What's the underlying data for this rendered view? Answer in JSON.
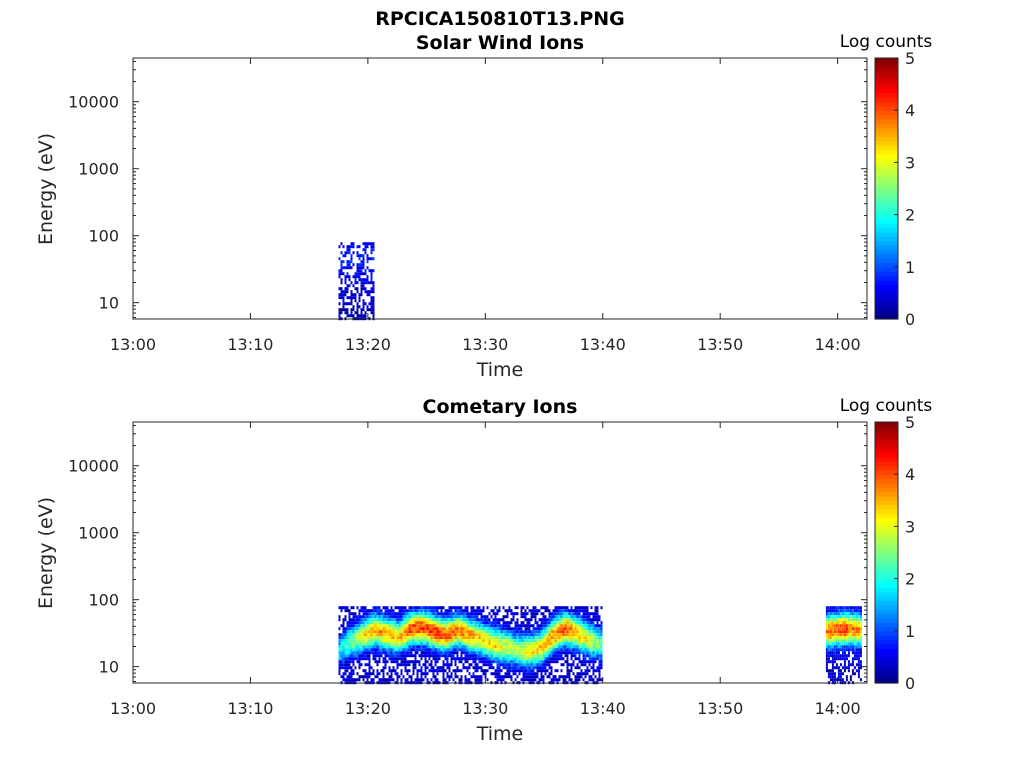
{
  "figure": {
    "title": "RPCICA150810T13.PNG"
  },
  "colormap": [
    "#00007f",
    "#0000ff",
    "#007fff",
    "#00ffff",
    "#7fff7f",
    "#ffff00",
    "#ff7f00",
    "#ff0000",
    "#7f0000"
  ],
  "chart_data": [
    {
      "type": "heatmap",
      "title": "Solar Wind Ions",
      "xlabel": "Time",
      "ylabel": "Energy (eV)",
      "x_unit": "minutes after 13:00",
      "xlim": [
        0,
        62.5
      ],
      "ylim": [
        5.7,
        45000
      ],
      "yscale": "log",
      "grid": false,
      "xticks": [
        {
          "value": 0,
          "label": "13:00"
        },
        {
          "value": 10,
          "label": "13:10"
        },
        {
          "value": 20,
          "label": "13:20"
        },
        {
          "value": 30,
          "label": "13:30"
        },
        {
          "value": 40,
          "label": "13:40"
        },
        {
          "value": 50,
          "label": "13:50"
        },
        {
          "value": 60,
          "label": "14:00"
        }
      ],
      "yticks": [
        {
          "value": 10,
          "label": "10"
        },
        {
          "value": 100,
          "label": "100"
        },
        {
          "value": 1000,
          "label": "1000"
        },
        {
          "value": 10000,
          "label": "10000"
        }
      ],
      "colorbar": {
        "label": "Log counts",
        "range": [
          0,
          5
        ],
        "ticks": [
          {
            "value": 0,
            "label": "0"
          },
          {
            "value": 1,
            "label": "1"
          },
          {
            "value": 2,
            "label": "2"
          },
          {
            "value": 3,
            "label": "3"
          },
          {
            "value": 4,
            "label": "4"
          },
          {
            "value": 5,
            "label": "5"
          }
        ]
      },
      "blocks": [
        {
          "t_start": 17.5,
          "t_end": 20.5,
          "e_min": 5.7,
          "e_max": 80,
          "counts": [
            0.3,
            0.4,
            0.5,
            0.4,
            0.3,
            0.2,
            0.1,
            0.1,
            0.0,
            0.0
          ],
          "coverage": 0.55
        }
      ]
    },
    {
      "type": "heatmap",
      "title": "Cometary Ions",
      "xlabel": "Time",
      "ylabel": "Energy (eV)",
      "x_unit": "minutes after 13:00",
      "xlim": [
        0,
        62.5
      ],
      "ylim": [
        5.7,
        45000
      ],
      "yscale": "log",
      "grid": false,
      "xticks": [
        {
          "value": 0,
          "label": "13:00"
        },
        {
          "value": 10,
          "label": "13:10"
        },
        {
          "value": 20,
          "label": "13:20"
        },
        {
          "value": 30,
          "label": "13:30"
        },
        {
          "value": 40,
          "label": "13:40"
        },
        {
          "value": 50,
          "label": "13:50"
        },
        {
          "value": 60,
          "label": "14:00"
        }
      ],
      "yticks": [
        {
          "value": 10,
          "label": "10"
        },
        {
          "value": 100,
          "label": "100"
        },
        {
          "value": 1000,
          "label": "1000"
        },
        {
          "value": 10000,
          "label": "10000"
        }
      ],
      "colorbar": {
        "label": "Log counts",
        "range": [
          0,
          5
        ],
        "ticks": [
          {
            "value": 0,
            "label": "0"
          },
          {
            "value": 1,
            "label": "1"
          },
          {
            "value": 2,
            "label": "2"
          },
          {
            "value": 3,
            "label": "3"
          },
          {
            "value": 4,
            "label": "4"
          },
          {
            "value": 5,
            "label": "5"
          }
        ]
      },
      "blocks": [
        {
          "t_start": 17.5,
          "t_end": 40.0,
          "e_min": 5.7,
          "e_max": 80,
          "peak_energy": [
            18,
            24,
            30,
            36,
            32,
            28,
            38,
            40,
            34,
            30,
            36,
            30,
            26,
            22,
            20,
            18,
            17,
            20,
            30,
            38,
            32,
            26,
            22
          ],
          "peak_counts": [
            1.8,
            2.4,
            3.2,
            3.6,
            3.6,
            3.4,
            4.0,
            4.1,
            4.2,
            4.0,
            3.8,
            3.6,
            3.3,
            3.4,
            3.0,
            2.8,
            3.2,
            3.4,
            3.8,
            4.0,
            3.6,
            3.0,
            2.4
          ]
        },
        {
          "t_start": 59.0,
          "t_end": 62.0,
          "e_min": 5.7,
          "e_max": 80,
          "peak_energy": [
            35,
            38,
            36
          ],
          "peak_counts": [
            3.8,
            4.2,
            3.6
          ]
        }
      ]
    }
  ]
}
